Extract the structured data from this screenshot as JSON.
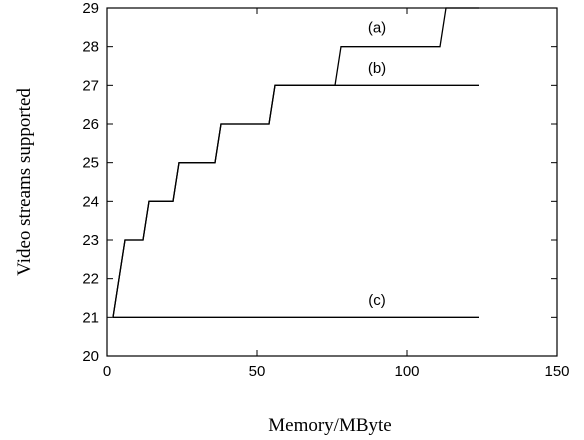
{
  "chart_data": {
    "type": "line",
    "title": "",
    "xlabel": "Memory/MByte",
    "ylabel": "Video streams supported",
    "xlim": [
      0,
      150
    ],
    "ylim": [
      20,
      29
    ],
    "xticks": [
      0,
      50,
      100,
      150
    ],
    "yticks": [
      20,
      21,
      22,
      23,
      24,
      25,
      26,
      27,
      28,
      29
    ],
    "grid": false,
    "legend": "none",
    "annotations": [
      {
        "text": "(a)",
        "x": 90,
        "y": 28.5
      },
      {
        "text": "(b)",
        "x": 90,
        "y": 27.45
      },
      {
        "text": "(c)",
        "x": 90,
        "y": 21.45
      }
    ],
    "series": [
      {
        "label": "(a)",
        "color": "#000000",
        "x": [
          2,
          6,
          12,
          14,
          22,
          24,
          36,
          38,
          54,
          56,
          76,
          78,
          111,
          113,
          124
        ],
        "y": [
          21,
          23,
          23,
          24,
          24,
          25,
          25,
          26,
          26,
          27,
          27,
          28,
          28,
          29,
          29
        ]
      },
      {
        "label": "(b)",
        "color": "#000000",
        "x": [
          2,
          6,
          12,
          14,
          22,
          24,
          36,
          38,
          54,
          56,
          124
        ],
        "y": [
          21,
          23,
          23,
          24,
          24,
          25,
          25,
          26,
          26,
          27,
          27
        ]
      },
      {
        "label": "(c)",
        "color": "#000000",
        "x": [
          2,
          124
        ],
        "y": [
          21,
          21
        ]
      }
    ]
  }
}
